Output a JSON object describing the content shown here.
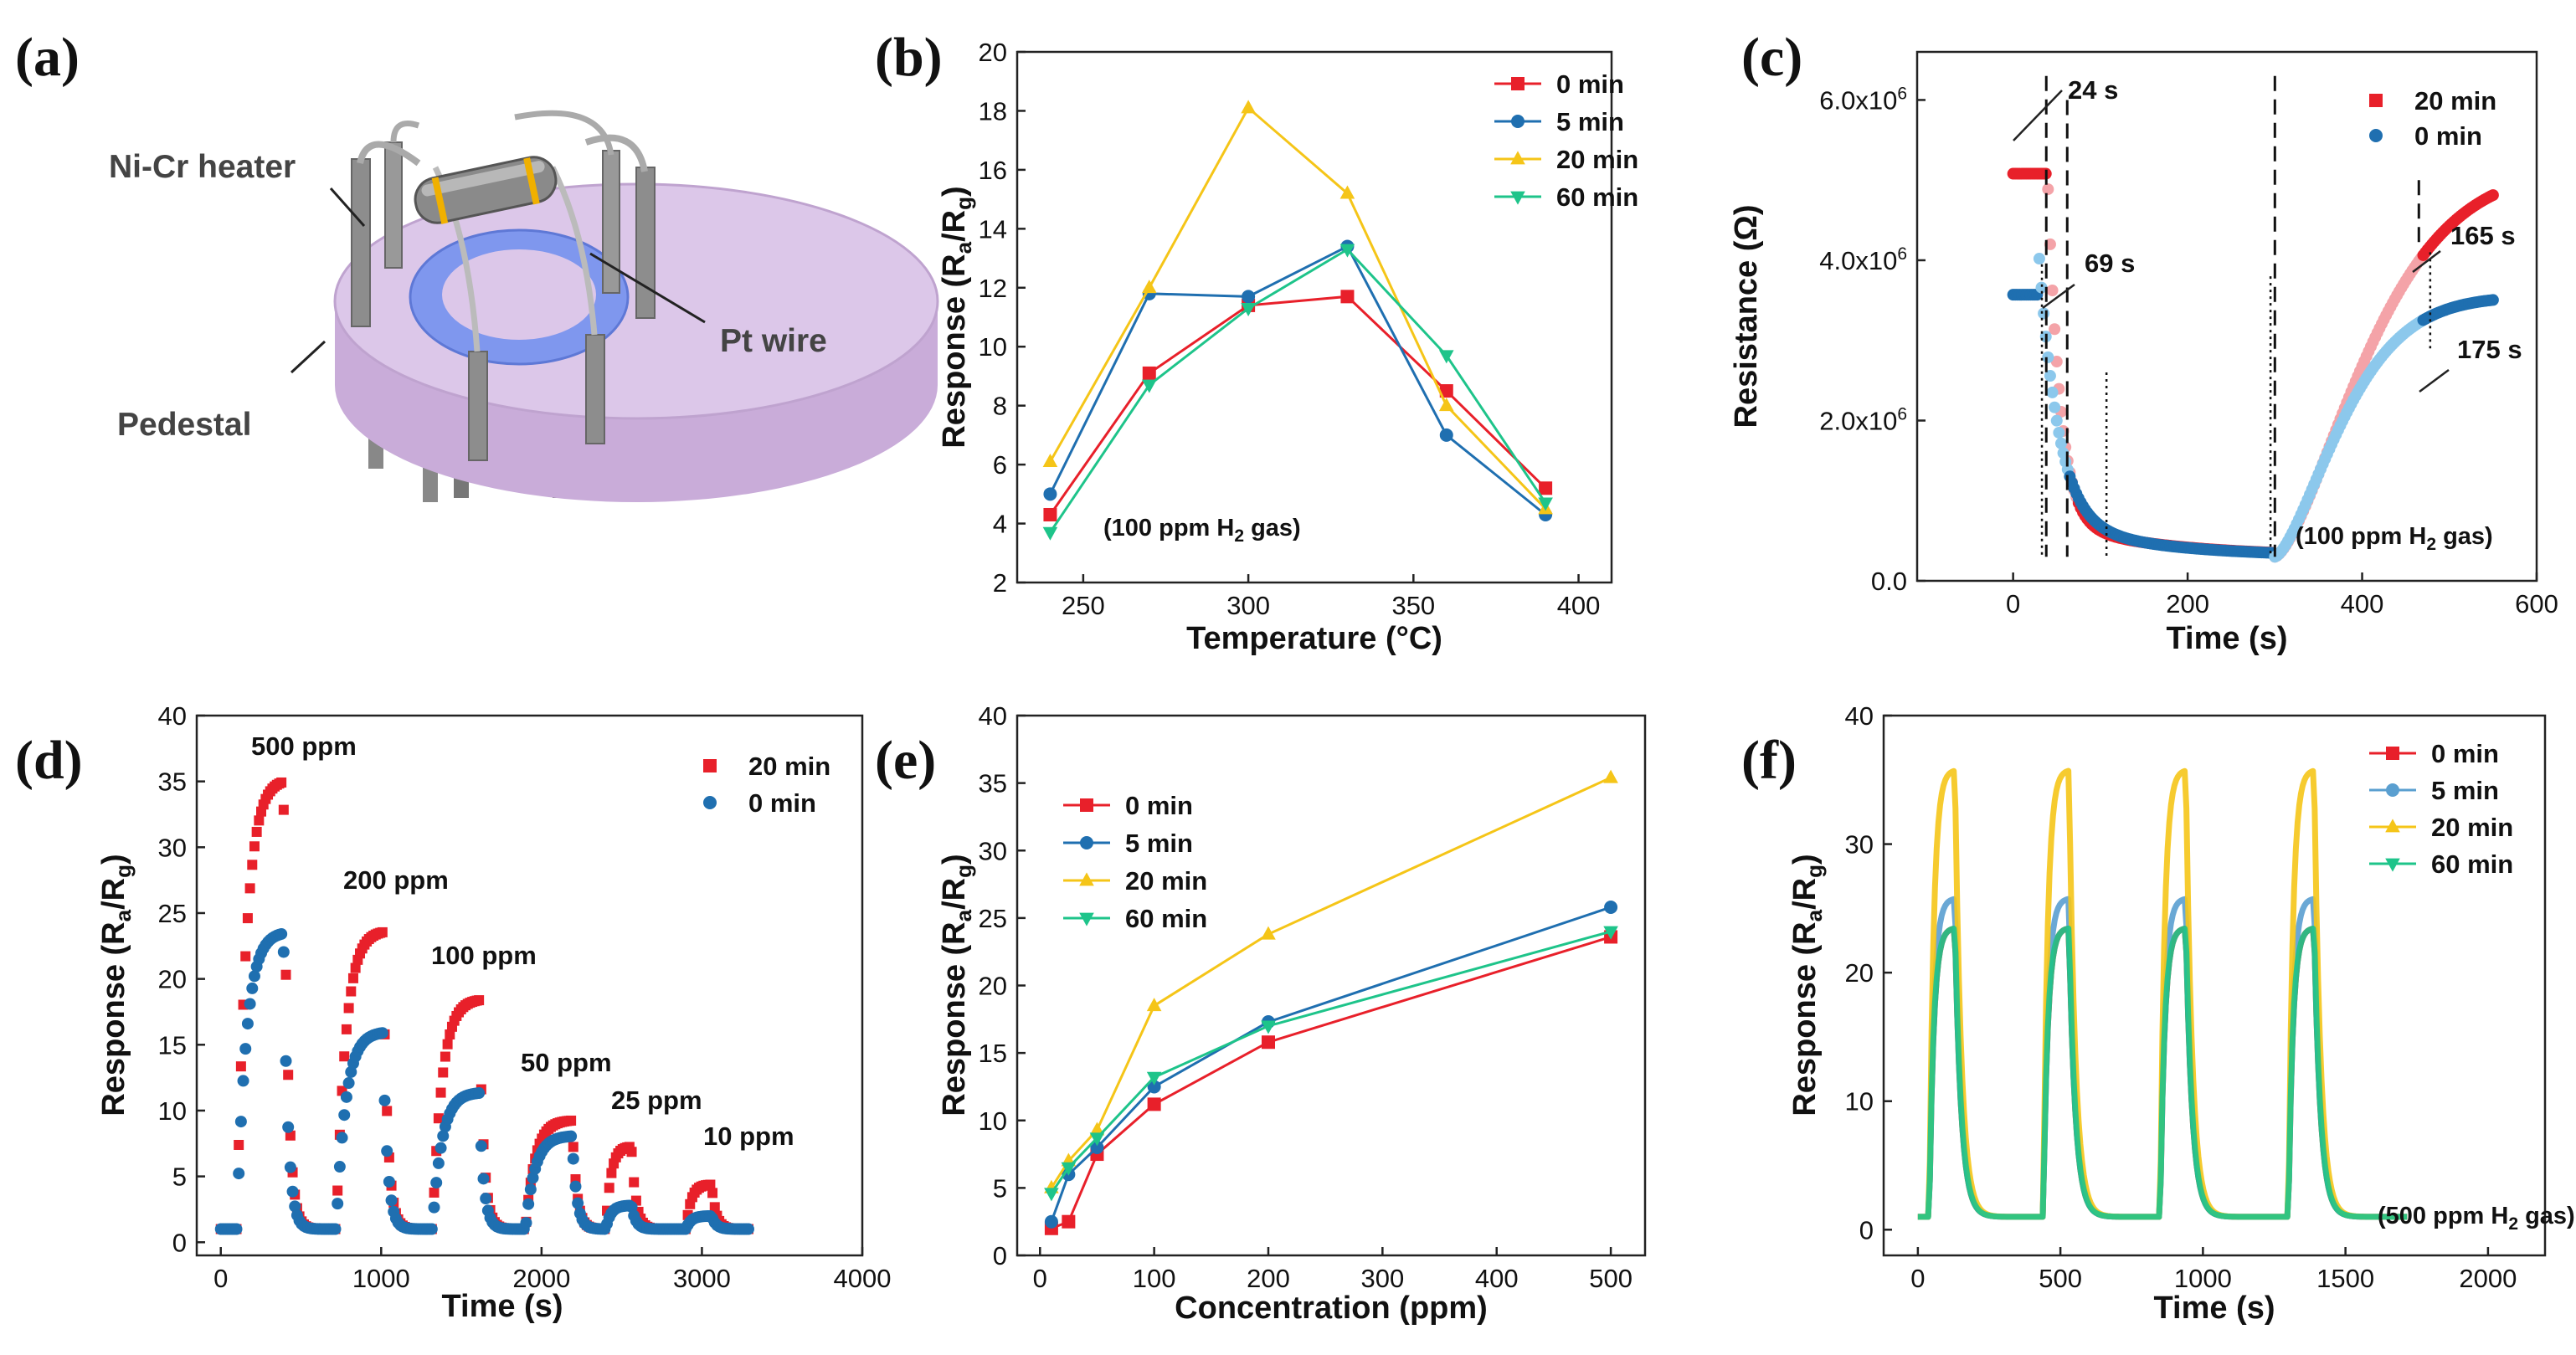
{
  "panels": {
    "a": "(a)",
    "b": "(b)",
    "c": "(c)",
    "d": "(d)",
    "e": "(e)",
    "f": "(f)"
  },
  "schematic": {
    "heater_label": "Ni-Cr heater",
    "wire_label": "Pt wire",
    "pedestal_label": "Pedestal",
    "colors": {
      "pedestal_top": "#dcc7e9",
      "pedestal_side": "#c9acd9",
      "ring": "#7f97ee",
      "heater": "#8a8a8a"
    }
  },
  "colors": {
    "0 min": "#e8202a",
    "5 min": "#1f6fb0",
    "20 min": "#f5c518",
    "60 min": "#1ec48a",
    "c_20min": "#e8202a",
    "c_0min": "#1f6fb0",
    "c_20min_light": "#f4a3a8",
    "c_0min_light": "#8cc8ec",
    "f_5min": "#5a9fd0"
  },
  "chart_data": [
    {
      "id": "b",
      "type": "line",
      "title": "",
      "xlabel": "Temperature (°C)",
      "ylabel": "Response (R",
      "ylabel_parts": [
        "Response (R",
        "a",
        "/R",
        "g",
        ")"
      ],
      "xlim": [
        230,
        410
      ],
      "ylim": [
        2,
        20
      ],
      "xticks": [
        250,
        300,
        350,
        400
      ],
      "yticks": [
        2,
        4,
        6,
        8,
        10,
        12,
        14,
        16,
        18,
        20
      ],
      "x": [
        240,
        270,
        300,
        330,
        360,
        390
      ],
      "series": [
        {
          "name": "0 min",
          "values": [
            4.3,
            9.1,
            11.4,
            11.7,
            8.5,
            5.2
          ]
        },
        {
          "name": "5 min",
          "values": [
            5.0,
            11.8,
            11.7,
            13.4,
            7.0,
            4.3
          ]
        },
        {
          "name": "20 min",
          "values": [
            6.1,
            12.0,
            18.1,
            15.2,
            8.0,
            4.5
          ]
        },
        {
          "name": "60 min",
          "values": [
            3.7,
            8.7,
            11.3,
            13.3,
            9.7,
            4.7
          ]
        }
      ],
      "note_parts": [
        "(100 ppm H",
        "2",
        " gas)"
      ],
      "legend": "top-right"
    },
    {
      "id": "c",
      "type": "scatter",
      "xlabel": "Time (s)",
      "ylabel": "Resistance (Ω)",
      "xlim": [
        -110,
        600
      ],
      "ylim": [
        0,
        6.6
      ],
      "xticks": [
        0,
        200,
        400,
        600
      ],
      "ytick_labels": [
        "0.0",
        "2.0x10",
        "4.0x10",
        "6.0x10"
      ],
      "ytick_values": [
        0,
        2,
        4,
        6
      ],
      "ytick_exp": "6",
      "unit_note": "values in 10^6 Ω",
      "series": [
        {
          "name": "20 min",
          "baseline": 5.08,
          "gas_on": 24,
          "low": 0.3,
          "gas_off": 300,
          "recover_end": 5.15,
          "recover_tau": 130
        },
        {
          "name": "0 min",
          "baseline": 3.57,
          "gas_on": 69,
          "low": 0.3,
          "gas_off": 300,
          "recover_end": 3.55,
          "recover_tau": 95
        }
      ],
      "annotations": [
        "24 s",
        "69 s",
        "165 s",
        "175 s"
      ],
      "note_parts": [
        "(100 ppm H",
        "2",
        " gas)"
      ],
      "legend": "top-right"
    },
    {
      "id": "d",
      "type": "scatter",
      "xlabel": "Time (s)",
      "ylabel_parts": [
        "Response (R",
        "a",
        "/R",
        "g",
        ")"
      ],
      "xlim": [
        -150,
        4000
      ],
      "ylim": [
        -1,
        40
      ],
      "xticks": [
        0,
        1000,
        2000,
        3000,
        4000
      ],
      "yticks": [
        0,
        5,
        10,
        15,
        20,
        25,
        30,
        35,
        40
      ],
      "pulses": [
        {
          "label": "500 ppm",
          "start": 100,
          "end": 390,
          "peak_20": 35.2,
          "peak_0": 23.6
        },
        {
          "label": "200 ppm",
          "start": 720,
          "end": 1010,
          "peak_20": 23.7,
          "peak_0": 16.0
        },
        {
          "label": "100 ppm",
          "start": 1320,
          "end": 1610,
          "peak_20": 18.5,
          "peak_0": 11.4
        },
        {
          "label": "50 ppm",
          "start": 1900,
          "end": 2190,
          "peak_20": 9.3,
          "peak_0": 8.1
        },
        {
          "label": "25 ppm",
          "start": 2400,
          "end": 2560,
          "peak_20": 7.3,
          "peak_0": 2.8
        },
        {
          "label": "10 ppm",
          "start": 2900,
          "end": 3060,
          "peak_20": 4.4,
          "peak_0": 2.0
        }
      ],
      "baseline": 1.0,
      "series_names": [
        "20 min",
        "0 min"
      ],
      "legend": "top-right"
    },
    {
      "id": "e",
      "type": "line",
      "xlabel": "Concentration (ppm)",
      "ylabel_parts": [
        "Response (R",
        "a",
        "/R",
        "g",
        ")"
      ],
      "xlim": [
        -20,
        530
      ],
      "ylim": [
        0,
        40
      ],
      "xticks": [
        0,
        100,
        200,
        300,
        400,
        500
      ],
      "yticks": [
        0,
        5,
        10,
        15,
        20,
        25,
        30,
        35,
        40
      ],
      "x": [
        10,
        25,
        50,
        100,
        200,
        500
      ],
      "series": [
        {
          "name": "0 min",
          "values": [
            2.0,
            2.5,
            7.5,
            11.2,
            15.8,
            23.6
          ]
        },
        {
          "name": "5 min",
          "values": [
            2.5,
            6.0,
            8.0,
            12.5,
            17.3,
            25.8
          ]
        },
        {
          "name": "20 min",
          "values": [
            5.0,
            7.0,
            9.3,
            18.5,
            23.8,
            35.4
          ]
        },
        {
          "name": "60 min",
          "values": [
            4.6,
            6.5,
            8.7,
            13.2,
            17.0,
            24.0
          ]
        }
      ],
      "legend": "top-left"
    },
    {
      "id": "f",
      "type": "scatter",
      "xlabel": "Time (s)",
      "ylabel_parts": [
        "Response (R",
        "a",
        "/R",
        "g",
        ")"
      ],
      "xlim": [
        -120,
        2200
      ],
      "ylim": [
        -2,
        40
      ],
      "xticks": [
        0,
        500,
        1000,
        1500,
        2000
      ],
      "yticks": [
        0,
        10,
        20,
        30,
        40
      ],
      "cycles_start": [
        40,
        440,
        850,
        1300
      ],
      "cycle_on_s": 90,
      "baseline": 1.0,
      "series": [
        {
          "name": "0 min",
          "peak": 23.5
        },
        {
          "name": "5 min",
          "peak": 25.8
        },
        {
          "name": "20 min",
          "peak": 35.8
        },
        {
          "name": "60 min",
          "peak": 23.5
        }
      ],
      "note_parts": [
        "(500 ppm H",
        "2",
        " gas)"
      ],
      "legend": "top-right"
    }
  ]
}
